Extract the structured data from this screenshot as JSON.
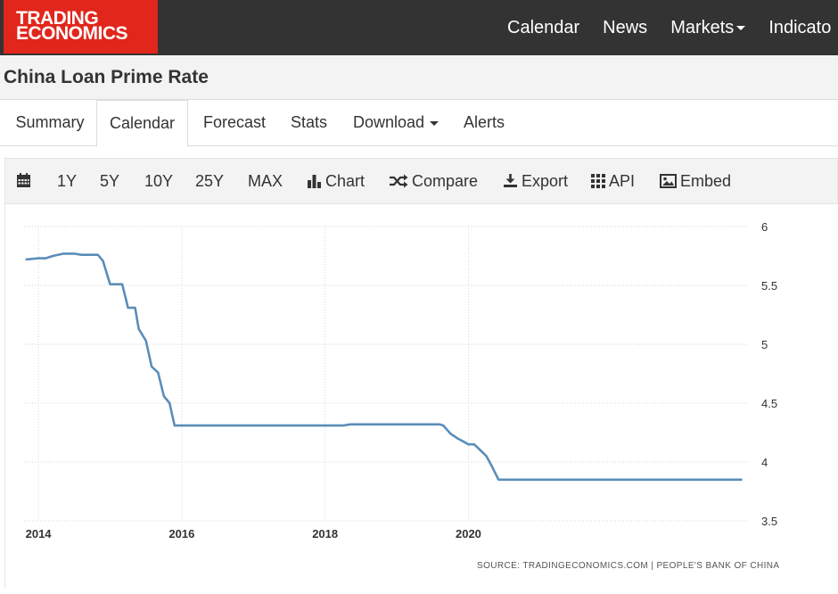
{
  "header": {
    "logo_line1": "TRADING",
    "logo_line2": "ECONOMICS",
    "nav": [
      "Calendar",
      "News",
      "Markets",
      "Indicato"
    ]
  },
  "page_title": "China Loan Prime Rate",
  "tabs": [
    "Summary",
    "Calendar",
    "Forecast",
    "Stats",
    "Download",
    "Alerts"
  ],
  "active_tab": "Calendar",
  "toolbar": {
    "ranges": [
      "1Y",
      "5Y",
      "10Y",
      "25Y",
      "MAX"
    ],
    "chart_label": "Chart",
    "compare_label": "Compare",
    "export_label": "Export",
    "api_label": "API",
    "embed_label": "Embed"
  },
  "colors": {
    "brand": "#e1261c",
    "line": "#5b8db8",
    "topbar": "#333333"
  },
  "source_text": "SOURCE: TRADINGECONOMICS.COM | PEOPLE'S BANK OF CHINA",
  "chart_data": {
    "type": "line",
    "title": "",
    "xlabel": "",
    "ylabel": "",
    "x_ticks": [
      "2014",
      "2016",
      "2018",
      "2020"
    ],
    "y_ticks": [
      "3.5",
      "4",
      "4.5",
      "5",
      "5.5",
      "6"
    ],
    "ylim": [
      3.5,
      6
    ],
    "xlim": [
      2013.8,
      2023.9
    ],
    "grid": true,
    "y_axis_side": "right",
    "series": [
      {
        "name": "",
        "x": [
          2013.82,
          2014.0,
          2014.1,
          2014.2,
          2014.35,
          2014.5,
          2014.6,
          2014.8,
          2014.83,
          2014.9,
          2015.0,
          2015.17,
          2015.25,
          2015.35,
          2015.4,
          2015.5,
          2015.58,
          2015.67,
          2015.75,
          2015.83,
          2015.9,
          2016.0,
          2016.5,
          2017.0,
          2017.5,
          2018.0,
          2018.25,
          2018.35,
          2018.5,
          2019.0,
          2019.5,
          2019.6,
          2019.65,
          2019.75,
          2019.85,
          2020.0,
          2020.08,
          2020.15,
          2020.25,
          2020.33,
          2020.42,
          2020.5,
          2021.0,
          2021.5,
          2022.0,
          2022.5,
          2023.0,
          2023.5,
          2023.82
        ],
        "values": [
          5.72,
          5.73,
          5.73,
          5.75,
          5.77,
          5.77,
          5.76,
          5.76,
          5.76,
          5.71,
          5.51,
          5.51,
          5.31,
          5.31,
          5.13,
          5.03,
          4.81,
          4.76,
          4.56,
          4.5,
          4.31,
          4.31,
          4.31,
          4.31,
          4.31,
          4.31,
          4.31,
          4.32,
          4.32,
          4.32,
          4.32,
          4.32,
          4.31,
          4.24,
          4.2,
          4.15,
          4.15,
          4.11,
          4.05,
          3.96,
          3.85,
          3.85,
          3.85,
          3.85,
          3.85,
          3.85,
          3.85,
          3.85,
          3.85
        ]
      }
    ]
  }
}
